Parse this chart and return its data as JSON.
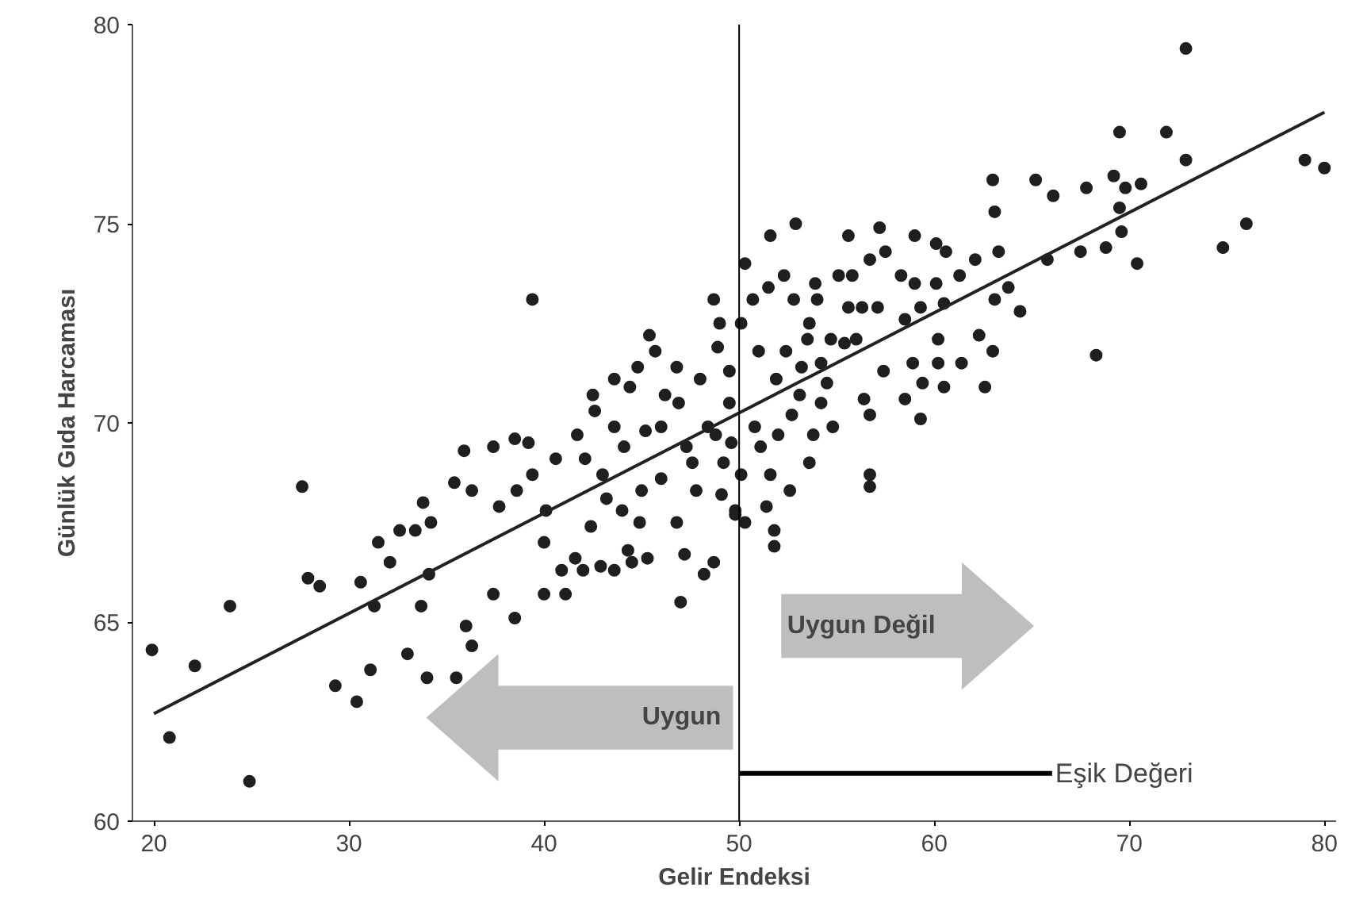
{
  "chart_data": {
    "type": "scatter",
    "xlabel": "Gelir Endeksi",
    "ylabel": "Günlük Gıda Harcaması",
    "xlim": [
      18.9,
      80.6
    ],
    "ylim": [
      60,
      80
    ],
    "xticks": [
      20,
      30,
      40,
      50,
      60,
      70,
      80
    ],
    "yticks": [
      60,
      65,
      70,
      75,
      80
    ],
    "grid": false,
    "series": [
      {
        "marker": "circle",
        "color": "#1f1f1f",
        "x": [
          19.9,
          20.8,
          22.1,
          23.9,
          24.9,
          27.6,
          27.9,
          28.5,
          29.3,
          30.4,
          30.6,
          31.1,
          31.5,
          31.3,
          32.1,
          32.6,
          33.4,
          33.0,
          33.8,
          34.0,
          34.2,
          33.7,
          34.1,
          35.5,
          35.4,
          35.9,
          36.0,
          36.3,
          36.3,
          37.4,
          37.4,
          37.7,
          38.5,
          38.5,
          38.6,
          39.2,
          39.4,
          39.4,
          40.0,
          40.0,
          40.1,
          40.6,
          40.9,
          41.1,
          41.6,
          42.0,
          41.7,
          42.1,
          42.4,
          42.5,
          42.6,
          42.9,
          43.0,
          43.2,
          43.6,
          43.6,
          43.6,
          44.0,
          44.1,
          44.3,
          44.4,
          44.5,
          44.8,
          44.9,
          45.0,
          45.2,
          45.3,
          45.4,
          45.7,
          46.0,
          46.0,
          46.2,
          46.8,
          46.8,
          46.9,
          47.0,
          47.2,
          47.3,
          47.6,
          47.8,
          48.0,
          48.2,
          48.4,
          48.7,
          48.7,
          48.8,
          48.9,
          49.0,
          49.1,
          49.2,
          49.5,
          49.8,
          49.5,
          49.6,
          49.8,
          50.3,
          50.3,
          50.1,
          50.1,
          50.7,
          50.8,
          51.0,
          51.1,
          51.4,
          51.5,
          51.6,
          51.6,
          51.8,
          51.8,
          51.9,
          52.0,
          52.3,
          52.4,
          52.6,
          52.7,
          52.8,
          52.9,
          53.1,
          53.2,
          53.5,
          53.6,
          53.6,
          53.8,
          53.9,
          54.0,
          54.2,
          54.2,
          54.5,
          54.7,
          54.8,
          55.1,
          55.4,
          55.6,
          55.6,
          55.8,
          56.0,
          56.3,
          56.4,
          56.7,
          56.7,
          56.7,
          56.7,
          57.1,
          57.2,
          57.4,
          57.5,
          58.3,
          58.5,
          58.5,
          58.9,
          59.0,
          59.0,
          59.3,
          59.3,
          59.4,
          60.1,
          60.1,
          60.2,
          60.2,
          60.5,
          60.6,
          60.5,
          61.3,
          61.4,
          62.1,
          62.3,
          62.6,
          63.0,
          63.0,
          63.1,
          63.1,
          63.3,
          63.8,
          64.4,
          65.2,
          65.8,
          66.1,
          67.5,
          67.8,
          68.3,
          68.8,
          69.2,
          69.5,
          69.5,
          69.6,
          69.8,
          70.4,
          70.6,
          71.9,
          72.9,
          72.9,
          74.8,
          76.0,
          79.0,
          80.0
        ],
        "values": [
          64.3,
          62.1,
          63.9,
          65.4,
          61.0,
          68.4,
          66.1,
          65.9,
          63.4,
          63.0,
          66.0,
          63.8,
          67.0,
          65.4,
          66.5,
          67.3,
          67.3,
          64.2,
          68.0,
          63.6,
          67.5,
          65.4,
          66.2,
          63.6,
          68.5,
          69.3,
          64.9,
          64.4,
          68.3,
          69.4,
          65.7,
          67.9,
          69.6,
          65.1,
          68.3,
          69.5,
          73.1,
          68.7,
          65.7,
          67.0,
          67.8,
          69.1,
          66.3,
          65.7,
          66.6,
          66.3,
          69.7,
          69.1,
          67.4,
          70.7,
          70.3,
          66.4,
          68.7,
          68.1,
          69.9,
          71.1,
          66.3,
          67.8,
          69.4,
          66.8,
          70.9,
          66.5,
          71.4,
          67.5,
          68.3,
          69.8,
          66.6,
          72.2,
          71.8,
          69.9,
          68.6,
          70.7,
          71.4,
          67.5,
          70.5,
          65.5,
          66.7,
          69.4,
          69.0,
          68.3,
          71.1,
          66.2,
          69.9,
          73.1,
          66.5,
          69.7,
          71.9,
          72.5,
          68.2,
          69.0,
          70.5,
          67.7,
          71.3,
          69.5,
          67.8,
          67.5,
          74.0,
          72.5,
          68.7,
          73.1,
          69.9,
          71.8,
          69.4,
          67.9,
          73.4,
          74.7,
          68.7,
          67.3,
          66.9,
          71.1,
          69.7,
          73.7,
          71.8,
          68.3,
          70.2,
          73.1,
          75.0,
          70.7,
          71.4,
          72.1,
          72.5,
          69.0,
          69.7,
          73.5,
          73.1,
          70.5,
          71.5,
          71.0,
          72.1,
          69.9,
          73.7,
          72.0,
          74.7,
          72.9,
          73.7,
          72.1,
          72.9,
          70.6,
          68.7,
          68.4,
          70.2,
          74.1,
          72.9,
          74.9,
          71.3,
          74.3,
          73.7,
          72.6,
          70.6,
          71.5,
          74.7,
          73.5,
          70.1,
          72.9,
          71.0,
          73.5,
          74.5,
          72.1,
          71.5,
          70.9,
          74.3,
          73.0,
          73.7,
          71.5,
          74.1,
          72.2,
          70.9,
          76.1,
          71.8,
          75.3,
          73.1,
          74.3,
          73.4,
          72.8,
          76.1,
          74.1,
          75.7,
          74.3,
          75.9,
          71.7,
          74.4,
          76.2,
          77.3,
          75.4,
          74.8,
          75.9,
          74.0,
          76.0,
          77.3,
          79.4,
          76.6,
          74.4,
          75.0,
          76.6,
          76.4
        ]
      },
      {
        "type": "line",
        "color": "#222222",
        "line_style": "solid",
        "x": [
          20,
          80
        ],
        "values": [
          62.7,
          77.8
        ]
      }
    ],
    "ref_lines": [
      {
        "axis": "x",
        "value": 50,
        "color": "#000000"
      }
    ],
    "annotations": [
      "Uygun",
      "Uygun Değil",
      {
        "text": "Eşik Değeri",
        "x": 50,
        "y": 61.2
      }
    ]
  }
}
